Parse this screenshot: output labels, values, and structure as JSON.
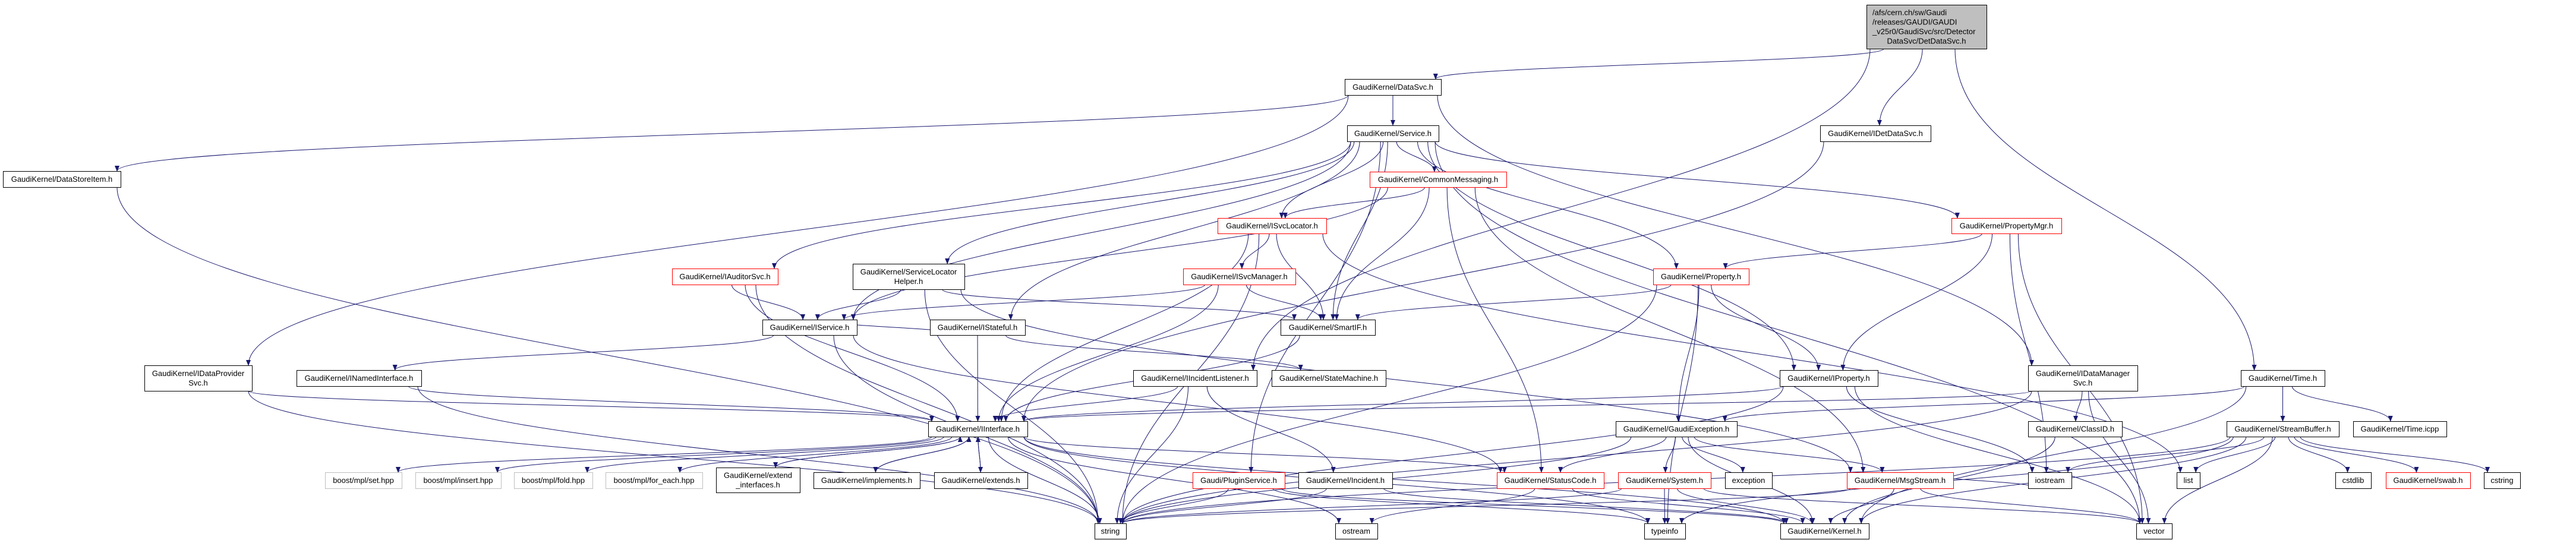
{
  "colors": {
    "edge": "#191970",
    "node_border": "#000000",
    "node_border_red": "#ff0000",
    "node_border_gray": "#bfbfbf",
    "main_fill": "#bfbfbf",
    "node_fill": "#ffffff"
  },
  "graph": {
    "nodes": [
      {
        "label": [
          "/afs/cern.ch/sw/Gaudi",
          "/releases/GAUDI/GAUDI",
          "_v25r0/GaudiSvc/src/Detector",
          "DataSvc/DetDataSvc.h"
        ],
        "style": "main"
      },
      {
        "label": [
          "GaudiKernel/DataSvc.h"
        ],
        "style": "normal"
      },
      {
        "label": [
          "GaudiKernel/Service.h"
        ],
        "style": "normal"
      },
      {
        "label": [
          "GaudiKernel/DataStoreItem.h"
        ],
        "style": "normal"
      },
      {
        "label": [
          "GaudiKernel/IDetDataSvc.h"
        ],
        "style": "normal"
      },
      {
        "label": [
          "GaudiKernel/CommonMessaging.h"
        ],
        "style": "red"
      },
      {
        "label": [
          "GaudiKernel/ISvcLocator.h"
        ],
        "style": "red"
      },
      {
        "label": [
          "GaudiKernel/PropertyMgr.h"
        ],
        "style": "red"
      },
      {
        "label": [
          "GaudiKernel/IAuditorSvc.h"
        ],
        "style": "red"
      },
      {
        "label": [
          "GaudiKernel/ServiceLocator",
          "Helper.h"
        ],
        "style": "normal"
      },
      {
        "label": [
          "GaudiKernel/ISvcManager.h"
        ],
        "style": "red"
      },
      {
        "label": [
          "GaudiKernel/Property.h"
        ],
        "style": "red"
      },
      {
        "label": [
          "GaudiKernel/IService.h"
        ],
        "style": "normal"
      },
      {
        "label": [
          "GaudiKernel/IStateful.h"
        ],
        "style": "normal"
      },
      {
        "label": [
          "GaudiKernel/SmartIF.h"
        ],
        "style": "normal"
      },
      {
        "label": [
          "GaudiKernel/IDataProvider",
          "Svc.h"
        ],
        "style": "normal"
      },
      {
        "label": [
          "GaudiKernel/INamedInterface.h"
        ],
        "style": "normal"
      },
      {
        "label": [
          "GaudiKernel/IIncidentListener.h"
        ],
        "style": "normal"
      },
      {
        "label": [
          "GaudiKernel/StateMachine.h"
        ],
        "style": "normal"
      },
      {
        "label": [
          "GaudiKernel/IProperty.h"
        ],
        "style": "normal"
      },
      {
        "label": [
          "GaudiKernel/IDataManager",
          "Svc.h"
        ],
        "style": "normal"
      },
      {
        "label": [
          "GaudiKernel/Time.h"
        ],
        "style": "normal"
      },
      {
        "label": [
          "GaudiKernel/IInterface.h"
        ],
        "style": "normal"
      },
      {
        "label": [
          "GaudiKernel/GaudiException.h"
        ],
        "style": "normal"
      },
      {
        "label": [
          "GaudiKernel/ClassID.h"
        ],
        "style": "normal"
      },
      {
        "label": [
          "GaudiKernel/StreamBuffer.h"
        ],
        "style": "normal"
      },
      {
        "label": [
          "GaudiKernel/Time.icpp"
        ],
        "style": "normal"
      },
      {
        "label": [
          "boost/mpl/set.hpp"
        ],
        "style": "gray"
      },
      {
        "label": [
          "boost/mpl/insert.hpp"
        ],
        "style": "gray"
      },
      {
        "label": [
          "boost/mpl/fold.hpp"
        ],
        "style": "gray"
      },
      {
        "label": [
          "boost/mpl/for_each.hpp"
        ],
        "style": "gray"
      },
      {
        "label": [
          "GaudiKernel/extend",
          "_interfaces.h"
        ],
        "style": "normal"
      },
      {
        "label": [
          "GaudiKernel/implements.h"
        ],
        "style": "normal"
      },
      {
        "label": [
          "GaudiKernel/extends.h"
        ],
        "style": "normal"
      },
      {
        "label": [
          "Gaudi/PluginService.h"
        ],
        "style": "red"
      },
      {
        "label": [
          "GaudiKernel/Incident.h"
        ],
        "style": "normal"
      },
      {
        "label": [
          "GaudiKernel/StatusCode.h"
        ],
        "style": "red"
      },
      {
        "label": [
          "GaudiKernel/System.h"
        ],
        "style": "red"
      },
      {
        "label": [
          "exception"
        ],
        "style": "normal"
      },
      {
        "label": [
          "GaudiKernel/MsgStream.h"
        ],
        "style": "red"
      },
      {
        "label": [
          "iostream"
        ],
        "style": "normal"
      },
      {
        "label": [
          "list"
        ],
        "style": "normal"
      },
      {
        "label": [
          "cstdlib"
        ],
        "style": "normal"
      },
      {
        "label": [
          "GaudiKernel/swab.h"
        ],
        "style": "red"
      },
      {
        "label": [
          "cstring"
        ],
        "style": "normal"
      },
      {
        "label": [
          "string"
        ],
        "style": "normal"
      },
      {
        "label": [
          "ostream"
        ],
        "style": "normal"
      },
      {
        "label": [
          "typeinfo"
        ],
        "style": "normal"
      },
      {
        "label": [
          "GaudiKernel/Kernel.h"
        ],
        "style": "normal"
      },
      {
        "label": [
          "vector"
        ],
        "style": "normal"
      }
    ],
    "edges": [
      [
        0,
        1
      ],
      [
        0,
        4
      ],
      [
        0,
        21
      ],
      [
        0,
        17
      ],
      [
        1,
        2
      ],
      [
        1,
        3
      ],
      [
        1,
        15
      ],
      [
        1,
        20
      ],
      [
        2,
        12
      ],
      [
        2,
        6
      ],
      [
        2,
        5
      ],
      [
        2,
        7
      ],
      [
        2,
        11
      ],
      [
        2,
        19
      ],
      [
        2,
        13
      ],
      [
        2,
        8
      ],
      [
        2,
        9
      ],
      [
        2,
        14
      ],
      [
        2,
        34
      ],
      [
        2,
        49
      ],
      [
        5,
        6
      ],
      [
        5,
        12
      ],
      [
        5,
        14
      ],
      [
        5,
        39
      ],
      [
        5,
        36
      ],
      [
        6,
        10
      ],
      [
        6,
        14
      ],
      [
        6,
        22
      ],
      [
        6,
        45
      ],
      [
        6,
        41
      ],
      [
        10,
        14
      ],
      [
        10,
        12
      ],
      [
        10,
        22
      ],
      [
        8,
        12
      ],
      [
        8,
        45
      ],
      [
        8,
        22
      ],
      [
        9,
        12
      ],
      [
        9,
        14
      ],
      [
        9,
        39
      ],
      [
        9,
        45
      ],
      [
        12,
        16
      ],
      [
        12,
        13
      ],
      [
        12,
        45
      ],
      [
        12,
        36
      ],
      [
        13,
        22
      ],
      [
        13,
        18
      ],
      [
        16,
        22
      ],
      [
        16,
        45
      ],
      [
        15,
        22
      ],
      [
        15,
        45
      ],
      [
        3,
        45
      ],
      [
        17,
        22
      ],
      [
        17,
        35
      ],
      [
        17,
        45
      ],
      [
        22,
        27
      ],
      [
        22,
        28
      ],
      [
        22,
        29
      ],
      [
        22,
        30
      ],
      [
        22,
        31
      ],
      [
        22,
        32
      ],
      [
        22,
        33
      ],
      [
        22,
        48
      ],
      [
        22,
        36
      ],
      [
        22,
        47
      ],
      [
        22,
        46
      ],
      [
        22,
        45
      ],
      [
        31,
        22
      ],
      [
        32,
        22
      ],
      [
        33,
        22
      ],
      [
        34,
        45
      ],
      [
        34,
        47
      ],
      [
        34,
        48
      ],
      [
        35,
        45
      ],
      [
        35,
        48
      ],
      [
        36,
        46
      ],
      [
        36,
        48
      ],
      [
        37,
        47
      ],
      [
        37,
        45
      ],
      [
        37,
        48
      ],
      [
        37,
        49
      ],
      [
        23,
        36
      ],
      [
        23,
        37
      ],
      [
        23,
        38
      ],
      [
        23,
        45
      ],
      [
        23,
        48
      ],
      [
        23,
        39
      ],
      [
        11,
        19
      ],
      [
        11,
        14
      ],
      [
        11,
        23
      ],
      [
        11,
        45
      ],
      [
        11,
        47
      ],
      [
        7,
        11
      ],
      [
        7,
        19
      ],
      [
        7,
        40
      ],
      [
        7,
        49
      ],
      [
        19,
        22
      ],
      [
        19,
        40
      ],
      [
        19,
        45
      ],
      [
        19,
        49
      ],
      [
        39,
        48
      ],
      [
        39,
        45
      ],
      [
        39,
        49
      ],
      [
        39,
        40
      ],
      [
        20,
        22
      ],
      [
        20,
        24
      ],
      [
        20,
        45
      ],
      [
        20,
        49
      ],
      [
        24,
        48
      ],
      [
        21,
        25
      ],
      [
        21,
        26
      ],
      [
        21,
        23
      ],
      [
        21,
        48
      ],
      [
        25,
        41
      ],
      [
        25,
        42
      ],
      [
        25,
        43
      ],
      [
        25,
        44
      ],
      [
        25,
        48
      ],
      [
        25,
        45
      ],
      [
        25,
        49
      ],
      [
        25,
        40
      ],
      [
        25,
        47
      ],
      [
        4,
        22
      ],
      [
        14,
        22
      ]
    ]
  }
}
